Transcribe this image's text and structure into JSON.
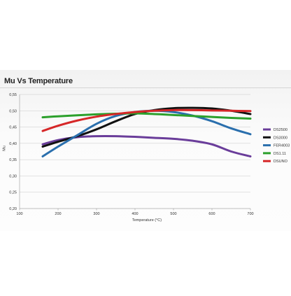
{
  "chart_data": {
    "type": "line",
    "title": "Mu Vs Temperature",
    "xlabel": "Temperature (°C)",
    "ylabel": "Mu",
    "xlim": [
      100,
      700
    ],
    "ylim": [
      0.2,
      0.55
    ],
    "x_ticks": [
      100,
      200,
      300,
      400,
      500,
      600,
      700
    ],
    "x_tick_labels": [
      "100",
      "200",
      "300",
      "400",
      "500",
      "600",
      "700"
    ],
    "y_ticks": [
      0.2,
      0.25,
      0.3,
      0.35,
      0.4,
      0.45,
      0.5,
      0.55
    ],
    "y_tick_labels": [
      "0,20",
      "0,25",
      "0,30",
      "0,35",
      "0,40",
      "0,45",
      "0,50",
      "0,55"
    ],
    "grid": "horizontal",
    "legend_position": "right",
    "series": [
      {
        "name": "DS2500",
        "color": "#6a3d9a",
        "x": [
          160,
          200,
          250,
          300,
          350,
          400,
          450,
          500,
          550,
          600,
          650,
          700
        ],
        "y": [
          0.397,
          0.41,
          0.419,
          0.422,
          0.422,
          0.42,
          0.417,
          0.414,
          0.408,
          0.397,
          0.375,
          0.36
        ]
      },
      {
        "name": "DS3000",
        "color": "#111111",
        "x": [
          160,
          200,
          250,
          300,
          350,
          400,
          450,
          500,
          550,
          600,
          650,
          700
        ],
        "y": [
          0.39,
          0.405,
          0.422,
          0.443,
          0.468,
          0.49,
          0.502,
          0.508,
          0.509,
          0.507,
          0.5,
          0.49
        ]
      },
      {
        "name": "FER4003",
        "color": "#2a6fad",
        "x": [
          160,
          200,
          250,
          300,
          350,
          400,
          450,
          500,
          550,
          600,
          650,
          700
        ],
        "y": [
          0.36,
          0.39,
          0.425,
          0.46,
          0.484,
          0.496,
          0.5,
          0.496,
          0.485,
          0.468,
          0.446,
          0.428
        ]
      },
      {
        "name": "DS1.11",
        "color": "#2ca02c",
        "x": [
          160,
          200,
          250,
          300,
          350,
          400,
          450,
          500,
          550,
          600,
          650,
          700
        ],
        "y": [
          0.48,
          0.483,
          0.486,
          0.489,
          0.491,
          0.492,
          0.49,
          0.487,
          0.484,
          0.481,
          0.478,
          0.476
        ]
      },
      {
        "name": "DSUNO",
        "color": "#d62728",
        "x": [
          160,
          200,
          250,
          300,
          350,
          400,
          450,
          500,
          550,
          600,
          650,
          700
        ],
        "y": [
          0.438,
          0.454,
          0.47,
          0.482,
          0.49,
          0.496,
          0.5,
          0.502,
          0.502,
          0.501,
          0.5,
          0.499
        ]
      }
    ]
  }
}
